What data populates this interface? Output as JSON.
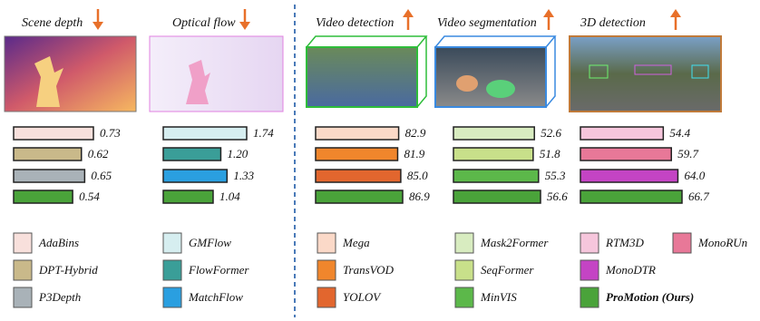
{
  "chart_data": [
    {
      "type": "bar",
      "title": "Scene depth",
      "categories": [
        "AdaBins",
        "DPT-Hybrid",
        "P3Depth",
        null
      ],
      "values": [
        0.73,
        0.62,
        0.65,
        0.54
      ],
      "value_labels": [
        "0.73",
        "0.62",
        "0.65",
        "0.54"
      ],
      "colors": [
        "#f8e0dc",
        "#c9b98a",
        "#a9b2b8",
        "#4aa33a"
      ]
    },
    {
      "type": "bar",
      "title": "Optical flow",
      "categories": [
        "GMFlow",
        "FlowFormer",
        "MatchFlow",
        null
      ],
      "values": [
        1.74,
        1.2,
        1.33,
        1.04
      ],
      "value_labels": [
        "1.74",
        "1.20",
        "1.33",
        "1.04"
      ],
      "colors": [
        "#d6eef0",
        "#3a9e98",
        "#2a9fe0",
        "#4aa33a"
      ]
    },
    {
      "type": "bar",
      "title": "Video detection",
      "categories": [
        "Mega",
        "TransVOD",
        "YOLOV",
        null
      ],
      "values": [
        82.9,
        81.9,
        85.0,
        86.9
      ],
      "value_labels": [
        "82.9",
        "81.9",
        "85.0",
        "86.9"
      ],
      "colors": [
        "#fbd9c8",
        "#f0862c",
        "#e2662e",
        "#4aa33a"
      ]
    },
    {
      "type": "bar",
      "title": "Video segmentation",
      "categories": [
        "Mask2Former",
        "SeqFormer",
        "MinVIS",
        null
      ],
      "values": [
        52.6,
        51.8,
        55.3,
        56.6
      ],
      "value_labels": [
        "52.6",
        "51.8",
        "55.3",
        "56.6"
      ],
      "colors": [
        "#d8ecc0",
        "#c8e08a",
        "#5cb84a",
        "#4aa33a"
      ]
    },
    {
      "type": "bar",
      "title": "3D detection",
      "categories": [
        "RTM3D",
        "MonoRUn",
        "MonoDTR",
        null
      ],
      "values": [
        54.4,
        59.7,
        64.0,
        66.7
      ],
      "value_labels": [
        "54.4",
        "59.7",
        "64.0",
        "66.7"
      ],
      "colors": [
        "#f6c6dc",
        "#e87898",
        "#c444c4",
        "#4aa33a"
      ]
    }
  ],
  "ours": {
    "label": "ProMotion (Ours)",
    "color": "#4aa33a"
  }
}
